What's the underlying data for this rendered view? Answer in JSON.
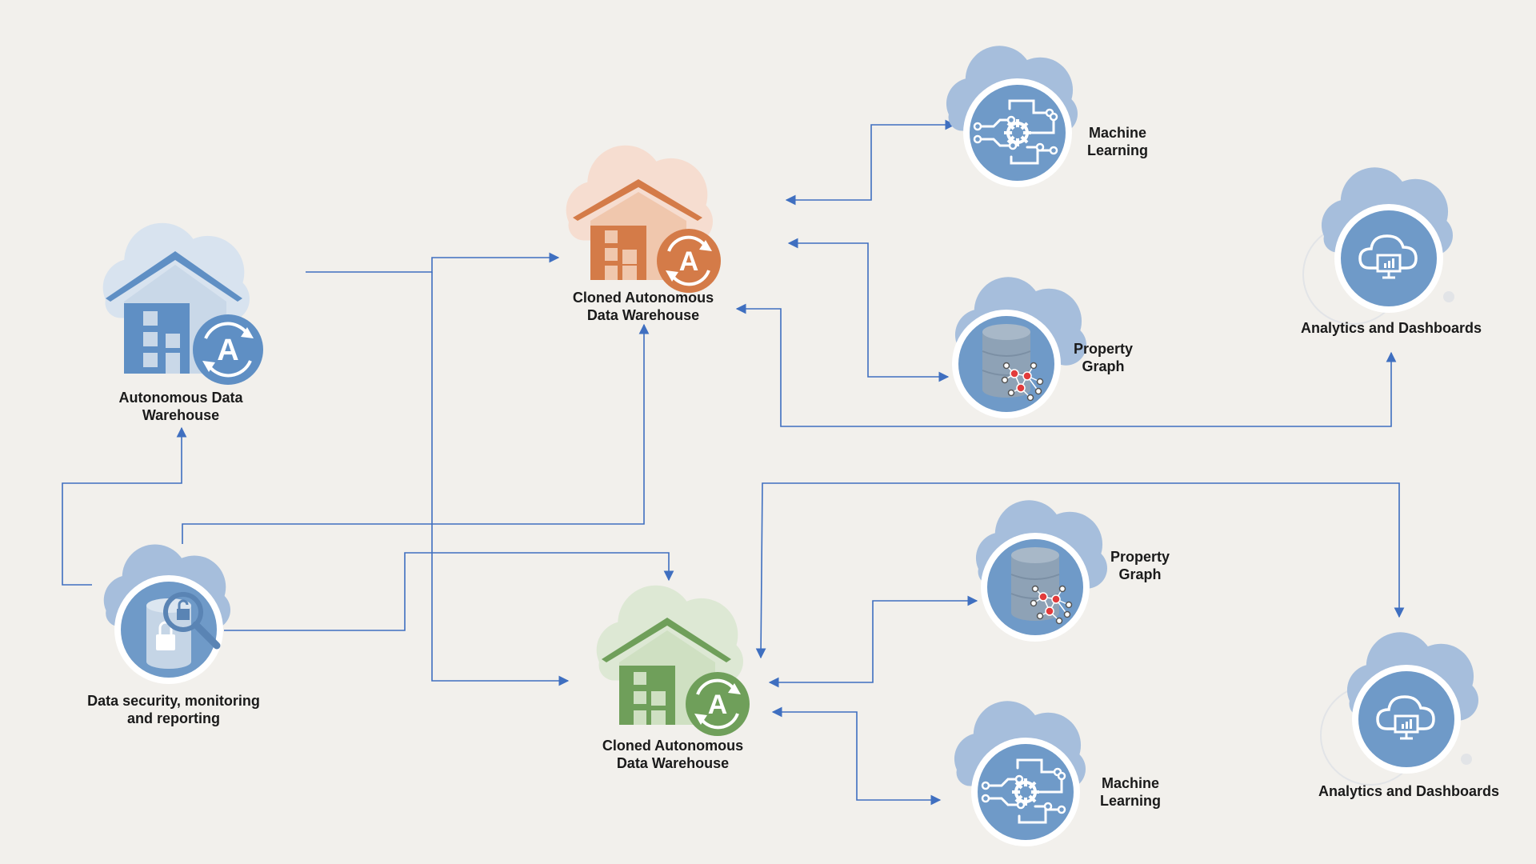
{
  "colors": {
    "background": "#f2f0ec",
    "connector": "#3f6fc0",
    "cloud_blue": "#a6bedc",
    "icon_blue": "#6f9ac8",
    "warehouse_blue": "#5f8fc4",
    "warehouse_orange": "#d47b48",
    "warehouse_green": "#6f9f5a",
    "node_red": "#e23b3b"
  },
  "nodes": {
    "adw": {
      "line1": "Autonomous Data",
      "line2": "Warehouse",
      "icon": "warehouse-autonomous-icon"
    },
    "clone_top": {
      "line1": "Cloned Autonomous",
      "line2": "Data Warehouse",
      "icon": "warehouse-clone-orange-icon"
    },
    "clone_bottom": {
      "line1": "Cloned Autonomous",
      "line2": "Data Warehouse",
      "icon": "warehouse-clone-green-icon"
    },
    "security": {
      "line1": "Data security, monitoring",
      "line2": "and reporting",
      "icon": "database-lock-search-icon"
    },
    "ml_top": {
      "line1": "Machine",
      "line2": "Learning",
      "icon": "circuit-gear-icon"
    },
    "pg_top": {
      "line1": "Property",
      "line2": "Graph",
      "icon": "graph-database-icon"
    },
    "ad_top": {
      "line1": "Analytics and Dashboards",
      "icon": "cloud-monitor-icon"
    },
    "pg_bottom": {
      "line1": "Property",
      "line2": "Graph",
      "icon": "graph-database-icon"
    },
    "ml_bottom": {
      "line1": "Machine",
      "line2": "Learning",
      "icon": "circuit-gear-icon"
    },
    "ad_bottom": {
      "line1": "Analytics and Dashboards",
      "icon": "cloud-monitor-icon"
    }
  }
}
